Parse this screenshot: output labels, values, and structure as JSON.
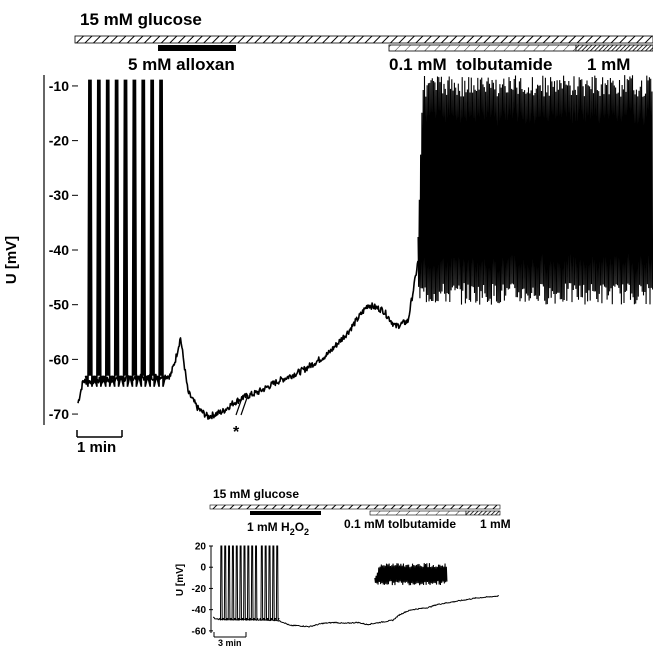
{
  "chart_data": [
    {
      "type": "line",
      "ylabel": "U [mV]",
      "ylim": [
        -72,
        -8
      ],
      "yticks": [
        -10,
        -20,
        -30,
        -40,
        -50,
        -60,
        -70
      ],
      "scale_bar": "1 min",
      "break_marker": "*",
      "treatments": [
        {
          "label": "15 mM glucose",
          "start_min": 0.0,
          "end_min": 11.5,
          "style": "hatched"
        },
        {
          "label": "5 mM alloxan",
          "start_min": 1.6,
          "end_min": 3.0,
          "style": "solid"
        },
        {
          "label": "0.1 mM  tolbutamide",
          "start_min": 5.9,
          "end_min": 9.5,
          "style": "light-hatched"
        },
        {
          "label": "1 mM",
          "start_min": 9.5,
          "end_min": 11.5,
          "style": "dark-hatched"
        }
      ],
      "series": [
        {
          "x": [
            0.0,
            0.1,
            0.2,
            1.85,
            1.95,
            2.05,
            2.2,
            2.4,
            2.6,
            2.9,
            3.1,
            3.3,
            3.6,
            4.0,
            4.5,
            5.0,
            5.4,
            5.8,
            6.1,
            6.35,
            6.6,
            6.75,
            6.8
          ],
          "y": [
            -68,
            -64,
            -64,
            -63,
            -60,
            -56,
            -66,
            -69,
            -70.5,
            -69.5,
            -68,
            -67,
            -66,
            -64,
            -62,
            -59,
            -55,
            -50,
            -51,
            -54,
            -53,
            -45,
            -42
          ]
        }
      ],
      "bursts": [
        {
          "start_min": 0.15,
          "end_min": 1.75,
          "count": 9,
          "peak_mV": -9,
          "trough_mV": -65
        },
        {
          "start_min": 6.8,
          "end_min": 11.5,
          "count": 0,
          "peak_mV": -8,
          "trough_mV": -48
        }
      ]
    },
    {
      "type": "line",
      "ylabel": "U [mV]",
      "ylim": [
        -62,
        20
      ],
      "yticks": [
        20,
        0,
        -20,
        -40,
        -60
      ],
      "scale_bar": "3 min",
      "treatments": [
        {
          "label": "15 mM glucose",
          "start_min": 0.0,
          "end_min": 45.0,
          "style": "hatched"
        },
        {
          "label": "1 mM H",
          "sub": "2",
          "suffix": "O",
          "sub2": "2",
          "start_min": 5.2,
          "end_min": 12.7,
          "style": "solid"
        },
        {
          "label": "0.1 mM tolbutamide",
          "start_min": 23.0,
          "end_min": 37.8,
          "style": "light-hatched"
        },
        {
          "label": "1 mM",
          "start_min": 37.8,
          "end_min": 45.0,
          "style": "dark-hatched"
        }
      ],
      "series": [
        {
          "x": [
            0.0,
            0.4,
            10.0,
            11.0,
            12.0,
            13.0,
            15.0,
            17.0,
            19.0,
            20.5,
            22.5,
            24.0,
            26.0,
            28.0,
            29.0,
            30.0,
            31.0,
            33.5,
            35.0,
            37.0,
            39.0,
            41.0,
            43.0,
            44.5
          ],
          "y": [
            -47,
            -49,
            -50,
            -52,
            -55,
            -55,
            -56,
            -53,
            -52,
            -53,
            -52,
            -54,
            -52,
            -50,
            -45,
            -42,
            -40,
            -38,
            -35,
            -33,
            -31,
            -29,
            -28,
            -27
          ]
        }
      ],
      "bursts": [
        {
          "start_min": 1.0,
          "end_min": 7.0,
          "count": 10,
          "peak_mV": 20,
          "trough_mV": -50
        },
        {
          "start_min": 7.3,
          "end_min": 10.3,
          "count": 5,
          "peak_mV": 20,
          "trough_mV": -50
        },
        {
          "start_min": 25.2,
          "end_min": 36.5,
          "count": 0,
          "peak_mV": 4,
          "trough_mV": -15
        }
      ]
    }
  ]
}
